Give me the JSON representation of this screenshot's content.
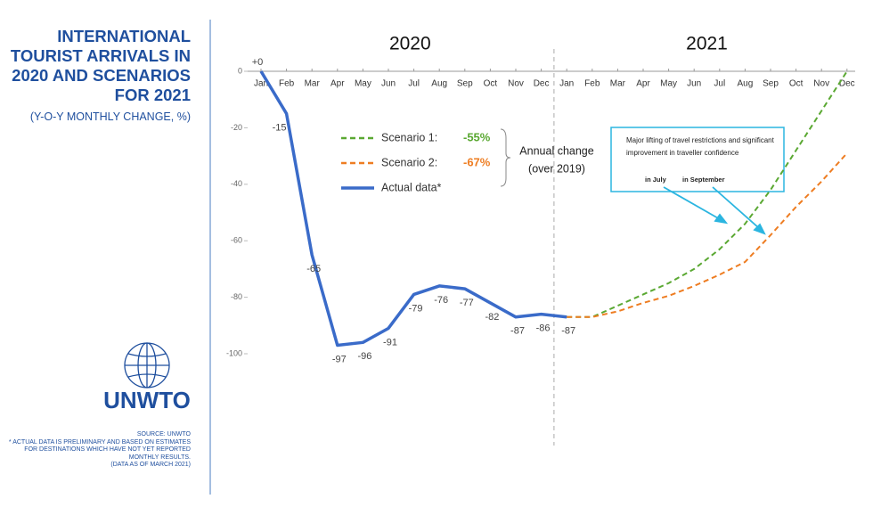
{
  "chart_data": {
    "type": "line",
    "title_lines": [
      "INTERNATIONAL",
      "TOURIST ARRIVALS IN",
      "2020 AND SCENARIOS",
      "FOR 2021"
    ],
    "subtitle": "(Y-O-Y MONTHLY CHANGE, %)",
    "logo": "UNWTO",
    "notes": [
      "SOURCE: UNWTO",
      "* ACTUAL DATA IS PRELIMINARY AND BASED ON ESTIMATES FOR DESTINATIONS WHICH HAVE NOT YET REPORTED MONTHLY RESULTS.",
      "(DATA AS OF MARCH 2021)"
    ],
    "years": [
      "2020",
      "2021"
    ],
    "categories": [
      "Jan",
      "Feb",
      "Mar",
      "Apr",
      "May",
      "Jun",
      "Jul",
      "Aug",
      "Sep",
      "Oct",
      "Nov",
      "Dec",
      "Jan",
      "Feb",
      "Mar",
      "Apr",
      "May",
      "Jun",
      "Jul",
      "Aug",
      "Sep",
      "Oct",
      "Nov",
      "Dec"
    ],
    "ylim": [
      -100,
      0
    ],
    "yticks": [
      0,
      -20,
      -40,
      -60,
      -80,
      -100
    ],
    "grid": false,
    "series": [
      {
        "name": "Scenario 1:",
        "annual_change": "-55%",
        "color": "#5aa832",
        "style": "dashed",
        "values": [
          null,
          null,
          null,
          null,
          null,
          null,
          null,
          null,
          null,
          null,
          null,
          null,
          -87,
          -87,
          -83,
          -79,
          -75,
          -70,
          -63,
          -54,
          -42,
          -28,
          -14,
          0
        ]
      },
      {
        "name": "Scenario 2:",
        "annual_change": "-67%",
        "color": "#ee7d22",
        "style": "dashed",
        "values": [
          null,
          null,
          null,
          null,
          null,
          null,
          null,
          null,
          null,
          null,
          null,
          null,
          -87,
          -87,
          -85,
          -82,
          -79.5,
          -76,
          -72,
          -67.5,
          -58,
          -48,
          -39,
          -29
        ]
      },
      {
        "name": "Actual data*",
        "color": "#3a6bc9",
        "style": "solid",
        "values": [
          0,
          -15,
          -65,
          -97,
          -96,
          -91,
          -79,
          -76,
          -77,
          -82,
          -87,
          -86,
          -87,
          null,
          null,
          null,
          null,
          null,
          null,
          null,
          null,
          null,
          null,
          null
        ],
        "value_labels": [
          "+0",
          "-15",
          "-65",
          "-97",
          "-96",
          "-91",
          "-79",
          "-76",
          "-77",
          "-82",
          "-87",
          "-86",
          "-87",
          null,
          null,
          null,
          null,
          null,
          null,
          null,
          null,
          null,
          null,
          null
        ]
      }
    ],
    "legend_note_lines": [
      "Annual change",
      "(over 2019)"
    ],
    "annotation": {
      "text_lines": [
        "Major lifting of travel restrictions and significant",
        "improvement in traveller confidence"
      ],
      "labels": [
        "in July",
        "in September"
      ]
    }
  }
}
